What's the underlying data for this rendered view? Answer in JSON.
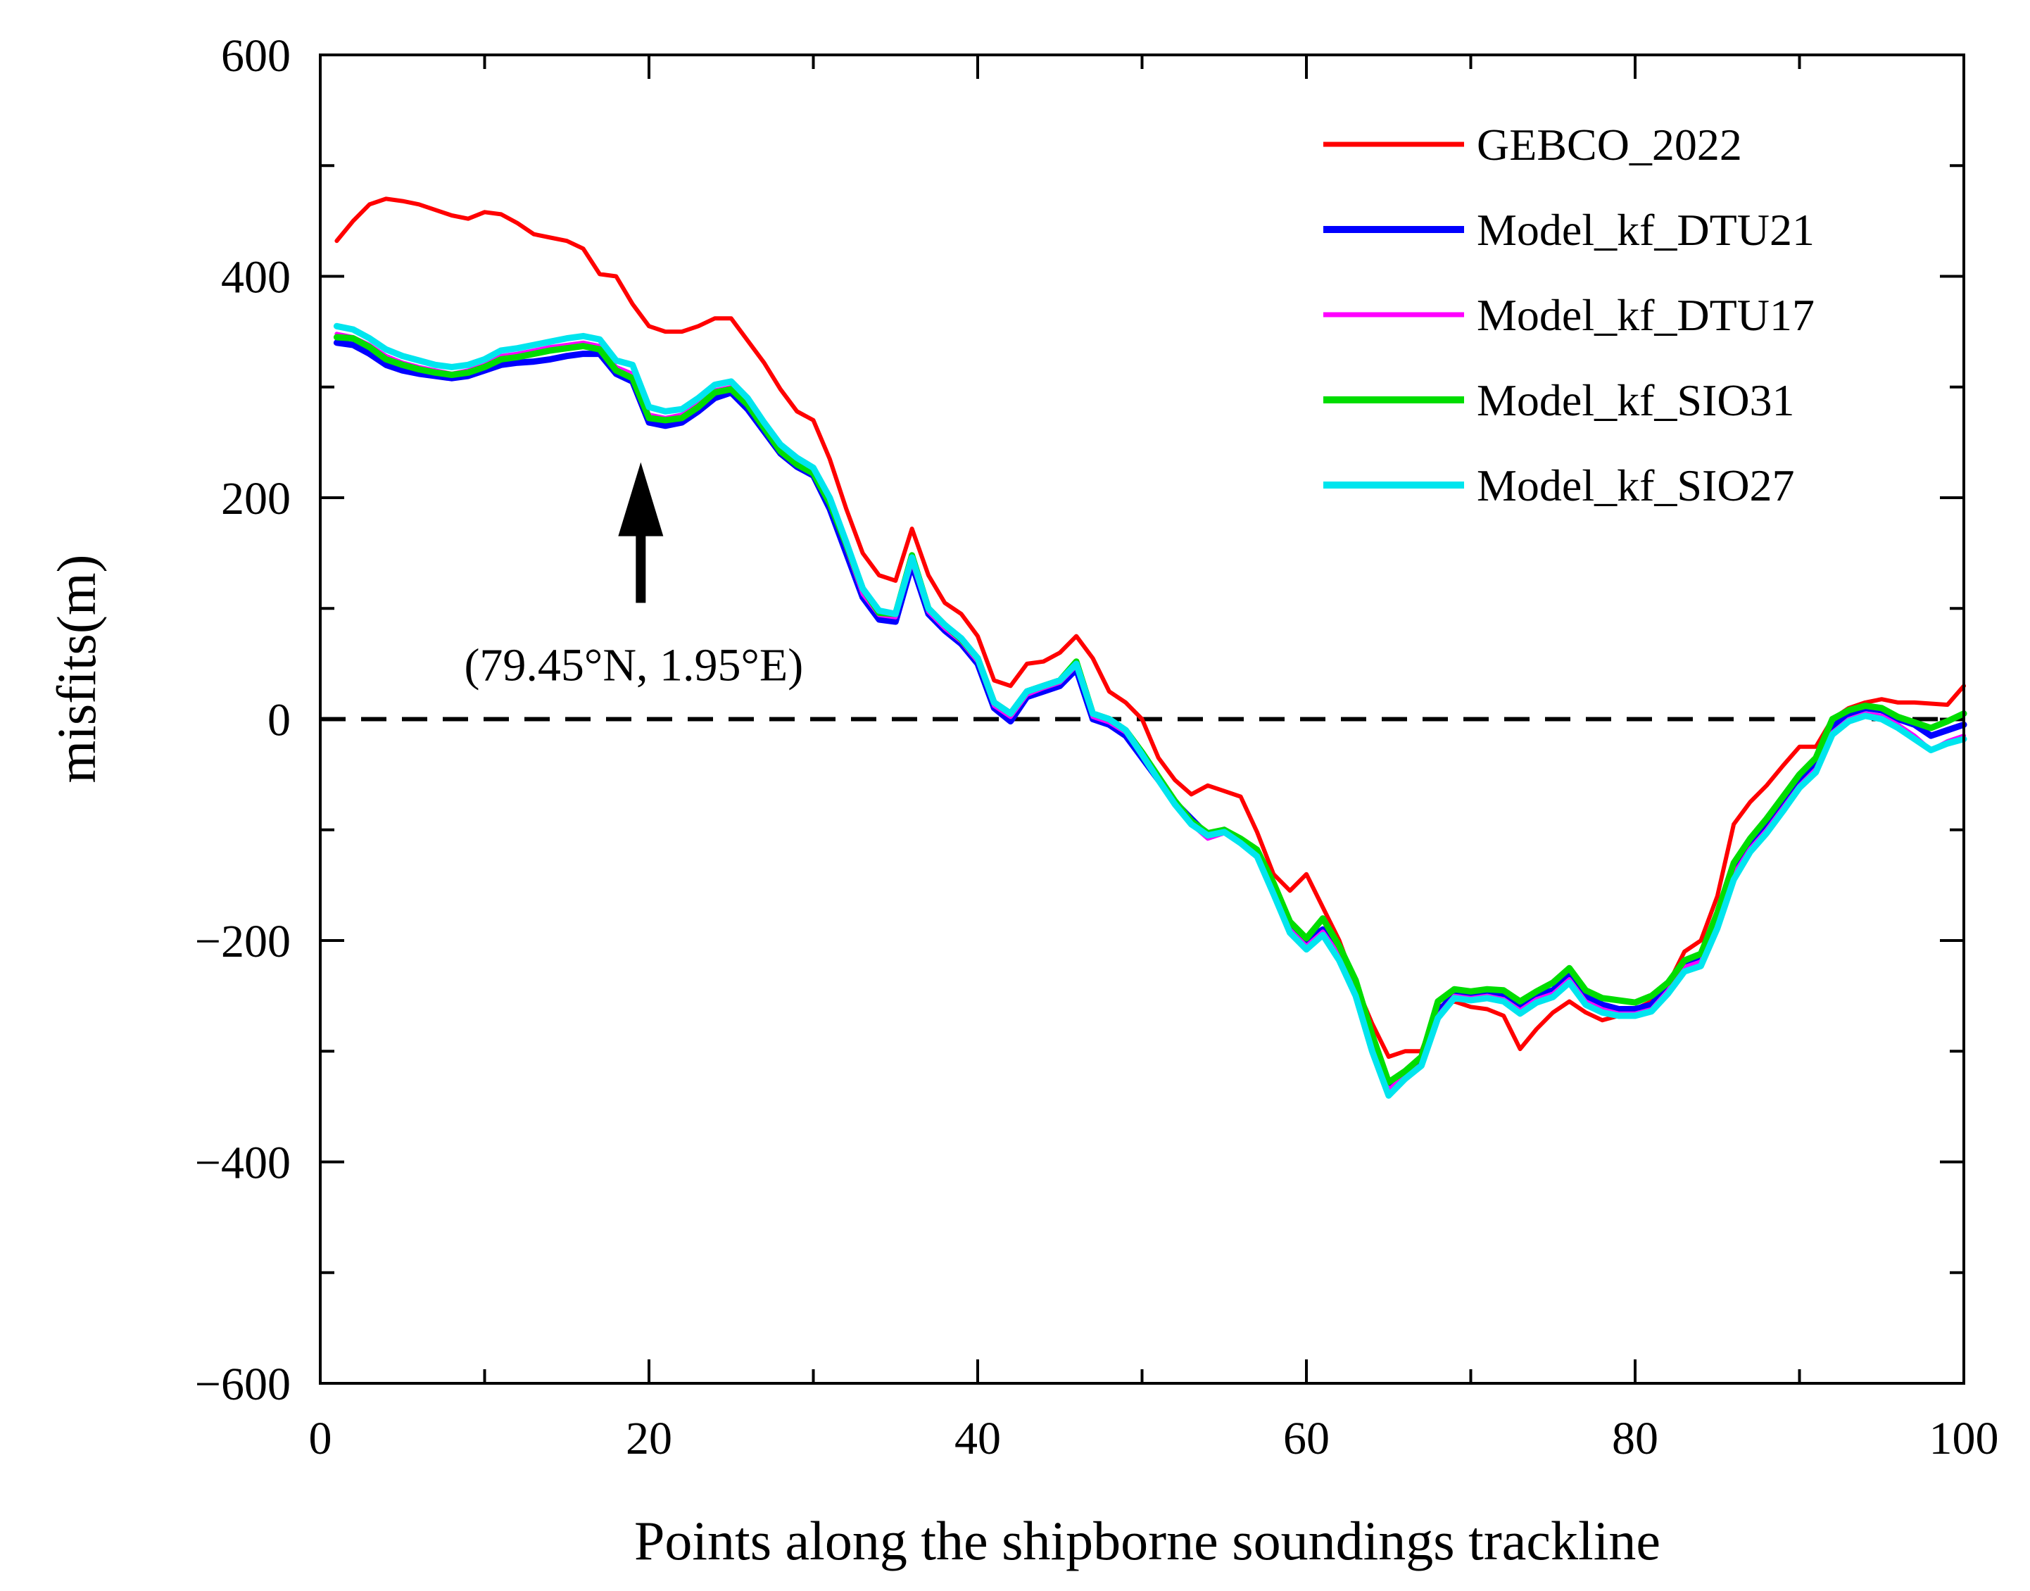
{
  "chart_data": {
    "type": "line",
    "title": "",
    "xlabel": "Points along the shipborne soundings trackline",
    "ylabel": "misfits(m)",
    "xlim": [
      0,
      100
    ],
    "ylim": [
      -600,
      600
    ],
    "xticks": [
      0,
      20,
      40,
      60,
      80,
      100
    ],
    "yticks": [
      600,
      400,
      200,
      0,
      -200,
      -400,
      -600
    ],
    "xtick_labels": [
      "0",
      "20",
      "40",
      "60",
      "80",
      "100"
    ],
    "ytick_labels": [
      "600",
      "400",
      "200",
      "0",
      "−200",
      "−400",
      "−600"
    ],
    "grid": false,
    "legend_position": "top-right",
    "reference_line": {
      "y": 0,
      "style": "dashed",
      "color": "#000000"
    },
    "annotation": {
      "text": "(79.45°N, 1.95°E)",
      "x": 19.5,
      "arrow_tip_y": 232,
      "arrow_tail_y": 105
    },
    "x": [
      1,
      2,
      3,
      4,
      5,
      6,
      7,
      8,
      9,
      10,
      11,
      12,
      13,
      14,
      15,
      16,
      17,
      18,
      19,
      20,
      21,
      22,
      23,
      24,
      25,
      26,
      27,
      28,
      29,
      30,
      31,
      32,
      33,
      34,
      35,
      36,
      37,
      38,
      39,
      40,
      41,
      42,
      43,
      44,
      45,
      46,
      47,
      48,
      49,
      50,
      51,
      52,
      53,
      54,
      55,
      56,
      57,
      58,
      59,
      60,
      61,
      62,
      63,
      64,
      65,
      66,
      67,
      68,
      69,
      70,
      71,
      72,
      73,
      74,
      75,
      76,
      77,
      78,
      79,
      80,
      81,
      82,
      83,
      84,
      85,
      86,
      87,
      88,
      89,
      90,
      91,
      92,
      93,
      94,
      95,
      96,
      97,
      98,
      99,
      100
    ],
    "series": [
      {
        "name": "GEBCO_2022",
        "color": "#ff0000",
        "values": [
          432,
          450,
          465,
          470,
          468,
          465,
          460,
          455,
          452,
          458,
          456,
          448,
          438,
          435,
          432,
          425,
          402,
          400,
          375,
          355,
          350,
          350,
          355,
          362,
          362,
          342,
          322,
          298,
          278,
          270,
          235,
          190,
          150,
          130,
          125,
          172,
          130,
          105,
          95,
          75,
          35,
          30,
          50,
          52,
          60,
          75,
          55,
          25,
          15,
          0,
          -35,
          -55,
          -68,
          -60,
          -65,
          -70,
          -102,
          -140,
          -155,
          -140,
          -170,
          -200,
          -240,
          -275,
          -305,
          -300,
          -300,
          -260,
          -255,
          -260,
          -262,
          -268,
          -298,
          -280,
          -265,
          -255,
          -265,
          -272,
          -268,
          -262,
          -255,
          -240,
          -210,
          -200,
          -160,
          -95,
          -75,
          -60,
          -42,
          -25,
          -25,
          0,
          10,
          15,
          18,
          15,
          15,
          14,
          13,
          30
        ]
      },
      {
        "name": "Model_kf_DTU21",
        "color": "#0000ff",
        "values": [
          340,
          338,
          330,
          320,
          315,
          312,
          310,
          308,
          310,
          315,
          320,
          322,
          323,
          325,
          328,
          330,
          330,
          312,
          305,
          268,
          265,
          268,
          278,
          290,
          295,
          280,
          260,
          240,
          228,
          220,
          190,
          150,
          110,
          90,
          88,
          140,
          95,
          80,
          68,
          50,
          10,
          -2,
          20,
          25,
          30,
          45,
          0,
          -5,
          -15,
          -35,
          -55,
          -75,
          -90,
          -105,
          -100,
          -110,
          -120,
          -150,
          -185,
          -200,
          -190,
          -210,
          -240,
          -290,
          -330,
          -320,
          -310,
          -265,
          -248,
          -250,
          -248,
          -250,
          -260,
          -250,
          -245,
          -232,
          -250,
          -258,
          -262,
          -262,
          -258,
          -240,
          -220,
          -215,
          -180,
          -135,
          -112,
          -95,
          -75,
          -55,
          -40,
          -8,
          5,
          10,
          8,
          0,
          -5,
          -15,
          -10,
          -5
        ]
      },
      {
        "name": "Model_kf_DTU17",
        "color": "#ff00ff",
        "values": [
          348,
          345,
          338,
          328,
          322,
          318,
          315,
          312,
          315,
          320,
          328,
          330,
          333,
          336,
          338,
          340,
          337,
          318,
          312,
          275,
          272,
          275,
          285,
          297,
          300,
          285,
          264,
          244,
          232,
          224,
          195,
          155,
          113,
          94,
          92,
          142,
          97,
          82,
          70,
          52,
          12,
          2,
          22,
          28,
          33,
          48,
          2,
          -3,
          -12,
          -33,
          -55,
          -77,
          -95,
          -108,
          -103,
          -112,
          -122,
          -155,
          -190,
          -205,
          -192,
          -213,
          -245,
          -295,
          -335,
          -322,
          -312,
          -268,
          -250,
          -252,
          -250,
          -253,
          -263,
          -253,
          -248,
          -235,
          -255,
          -262,
          -266,
          -266,
          -262,
          -245,
          -224,
          -219,
          -185,
          -140,
          -117,
          -100,
          -80,
          -60,
          -45,
          -12,
          0,
          5,
          3,
          -5,
          -15,
          -28,
          -20,
          -15
        ]
      },
      {
        "name": "Model_kf_SIO31",
        "color": "#00dd00",
        "values": [
          345,
          344,
          336,
          325,
          320,
          316,
          313,
          311,
          313,
          318,
          325,
          327,
          330,
          333,
          335,
          337,
          334,
          315,
          308,
          272,
          270,
          272,
          282,
          295,
          298,
          284,
          263,
          242,
          230,
          222,
          195,
          158,
          118,
          96,
          95,
          148,
          100,
          85,
          72,
          55,
          15,
          5,
          25,
          30,
          35,
          52,
          5,
          0,
          -10,
          -30,
          -52,
          -74,
          -92,
          -103,
          -100,
          -108,
          -118,
          -148,
          -183,
          -198,
          -180,
          -205,
          -236,
          -285,
          -328,
          -318,
          -305,
          -255,
          -244,
          -246,
          -244,
          -245,
          -255,
          -246,
          -238,
          -225,
          -245,
          -252,
          -254,
          -256,
          -250,
          -238,
          -218,
          -212,
          -175,
          -130,
          -108,
          -90,
          -70,
          -50,
          -35,
          0,
          8,
          12,
          10,
          2,
          -3,
          -8,
          -2,
          5
        ]
      },
      {
        "name": "Model_kf_SIO27",
        "color": "#00e5ee",
        "values": [
          355,
          352,
          344,
          334,
          328,
          324,
          320,
          318,
          320,
          325,
          333,
          335,
          338,
          341,
          344,
          346,
          343,
          324,
          320,
          282,
          278,
          280,
          290,
          302,
          305,
          290,
          268,
          248,
          236,
          227,
          200,
          160,
          118,
          98,
          95,
          146,
          100,
          85,
          73,
          55,
          15,
          5,
          25,
          30,
          35,
          50,
          5,
          0,
          -10,
          -32,
          -55,
          -77,
          -95,
          -105,
          -102,
          -112,
          -124,
          -158,
          -193,
          -208,
          -195,
          -218,
          -250,
          -300,
          -340,
          -325,
          -313,
          -270,
          -252,
          -254,
          -252,
          -255,
          -266,
          -256,
          -251,
          -238,
          -258,
          -265,
          -268,
          -268,
          -264,
          -248,
          -228,
          -223,
          -189,
          -145,
          -120,
          -103,
          -83,
          -62,
          -48,
          -14,
          -2,
          3,
          0,
          -8,
          -18,
          -28,
          -22,
          -18
        ]
      }
    ]
  }
}
